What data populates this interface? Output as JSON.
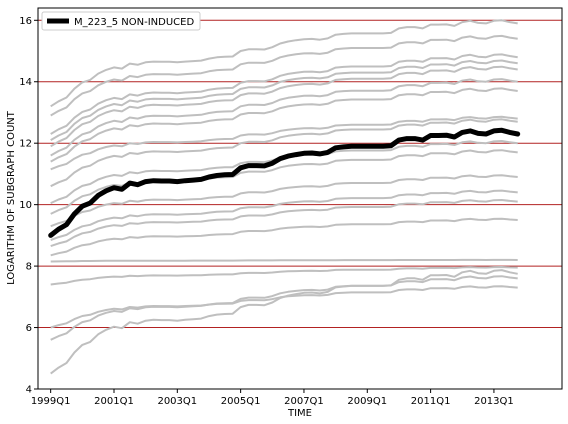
{
  "chart_data": {
    "type": "line",
    "title": "",
    "xlabel": "TIME",
    "ylabel": "LOGARITHM OF SUBGRAPH COUNT",
    "xlim": [
      1998.6,
      2015.15
    ],
    "ylim": [
      4,
      16.4
    ],
    "x_ticks": [
      {
        "value": 1999,
        "label": "1999Q1"
      },
      {
        "value": 2001,
        "label": "2001Q1"
      },
      {
        "value": 2003,
        "label": "2003Q1"
      },
      {
        "value": 2005,
        "label": "2005Q1"
      },
      {
        "value": 2007,
        "label": "2007Q1"
      },
      {
        "value": 2009,
        "label": "2009Q1"
      },
      {
        "value": 2011,
        "label": "2011Q1"
      },
      {
        "value": 2013,
        "label": "2013Q1"
      }
    ],
    "y_ticks": [
      4,
      6,
      8,
      10,
      12,
      14,
      16
    ],
    "grid": "horizontal",
    "grid_color": "#b22222",
    "legend": {
      "placement": "top-left",
      "entries": [
        "M_223_5 NON-INDUCED"
      ]
    },
    "colors": {
      "highlight": "#000000",
      "background_series": "#bfbfbf"
    },
    "x": [
      1999.0,
      1999.25,
      1999.5,
      1999.75,
      2000.0,
      2000.25,
      2000.5,
      2000.75,
      2001.0,
      2001.25,
      2001.5,
      2001.75,
      2002.0,
      2002.25,
      2002.5,
      2002.75,
      2003.0,
      2003.25,
      2003.5,
      2003.75,
      2004.0,
      2004.25,
      2004.5,
      2004.75,
      2005.0,
      2005.25,
      2005.5,
      2005.75,
      2006.0,
      2006.25,
      2006.5,
      2006.75,
      2007.0,
      2007.25,
      2007.5,
      2007.75,
      2008.0,
      2008.25,
      2008.5,
      2008.75,
      2009.0,
      2009.25,
      2009.5,
      2009.75,
      2010.0,
      2010.25,
      2010.5,
      2010.75,
      2011.0,
      2011.25,
      2011.5,
      2011.75,
      2012.0,
      2012.25,
      2012.5,
      2012.75,
      2013.0,
      2013.25,
      2013.5,
      2013.75
    ],
    "highlight_series": {
      "name": "M_223_5 NON-INDUCED",
      "values": [
        9.0,
        9.2,
        9.35,
        9.7,
        9.95,
        10.05,
        10.3,
        10.45,
        10.55,
        10.5,
        10.7,
        10.65,
        10.75,
        10.78,
        10.77,
        10.77,
        10.75,
        10.78,
        10.8,
        10.82,
        10.9,
        10.95,
        10.97,
        10.98,
        11.2,
        11.27,
        11.27,
        11.26,
        11.35,
        11.5,
        11.58,
        11.63,
        11.67,
        11.68,
        11.65,
        11.7,
        11.85,
        11.88,
        11.9,
        11.9,
        11.9,
        11.9,
        11.9,
        11.92,
        12.1,
        12.15,
        12.15,
        12.1,
        12.25,
        12.25,
        12.26,
        12.2,
        12.35,
        12.4,
        12.32,
        12.3,
        12.4,
        12.42,
        12.35,
        12.3
      ]
    },
    "background_series": [
      {
        "start": 13.2,
        "end": 15.9
      },
      {
        "start": 12.9,
        "end": 15.4
      },
      {
        "start": 12.3,
        "end": 14.8
      },
      {
        "start": 12.1,
        "end": 14.6
      },
      {
        "start": 11.9,
        "end": 14.4
      },
      {
        "start": 11.6,
        "end": 14.0
      },
      {
        "start": 11.4,
        "end": 13.7
      },
      {
        "start": 11.15,
        "end": 12.8
      },
      {
        "start": 10.6,
        "end": 12.7
      },
      {
        "start": 10.05,
        "end": 12.0
      },
      {
        "start": 9.7,
        "end": 11.7
      },
      {
        "start": 9.3,
        "end": 10.9
      },
      {
        "start": 8.85,
        "end": 10.4
      },
      {
        "start": 8.65,
        "end": 10.1
      },
      {
        "start": 8.35,
        "end": 9.5
      },
      {
        "start": 8.15,
        "end": 8.2
      },
      {
        "start": 7.4,
        "end": 7.95
      },
      {
        "start": 6.0,
        "end": 7.3
      },
      {
        "start": 5.6,
        "end": 7.6
      },
      {
        "start": 4.5,
        "end": 7.75
      }
    ]
  }
}
